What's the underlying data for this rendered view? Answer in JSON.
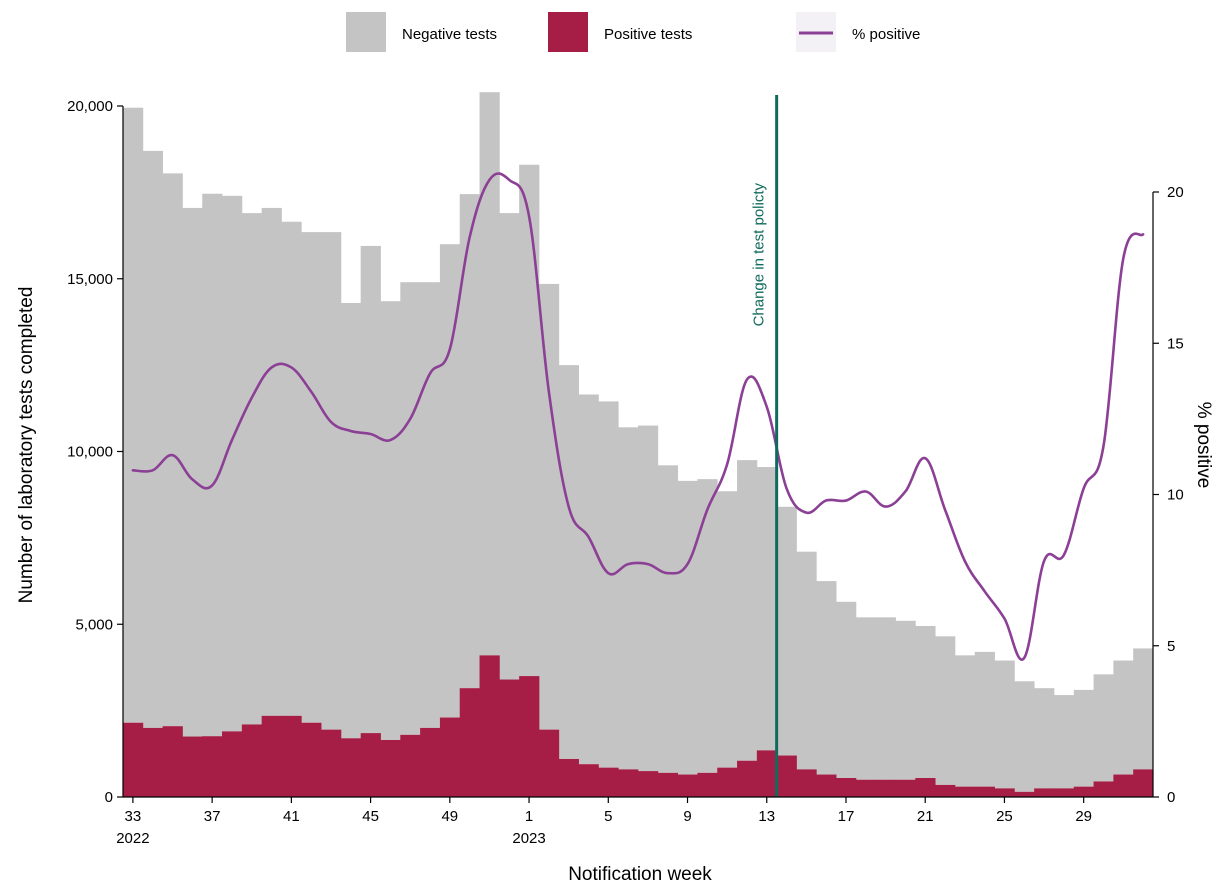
{
  "chart_data": {
    "type": "bar",
    "stacked": true,
    "x": [
      "33",
      "34",
      "35",
      "36",
      "37",
      "38",
      "39",
      "40",
      "41",
      "42",
      "43",
      "44",
      "45",
      "46",
      "47",
      "48",
      "49",
      "50",
      "51",
      "52",
      "1",
      "2",
      "3",
      "4",
      "5",
      "6",
      "7",
      "8",
      "9",
      "10",
      "11",
      "12",
      "13",
      "14",
      "15",
      "16",
      "17",
      "18",
      "19",
      "20",
      "21",
      "22",
      "23",
      "24",
      "25",
      "26",
      "27",
      "28",
      "29",
      "30",
      "31",
      "32"
    ],
    "x_tick_labels": [
      "33",
      "37",
      "41",
      "45",
      "49",
      "1",
      "5",
      "9",
      "13",
      "17",
      "21",
      "25",
      "29"
    ],
    "x_tick_values": [
      "33",
      "37",
      "41",
      "45",
      "49",
      "1",
      "5",
      "9",
      "13",
      "17",
      "21",
      "25",
      "29"
    ],
    "year_labels": [
      {
        "at": "33",
        "label": "2022"
      },
      {
        "at": "1",
        "label": "2023"
      }
    ],
    "xlabel": "Notification week",
    "ylabel": "Number of laboratory tests completed",
    "ylim": [
      0,
      20000
    ],
    "y_ticks": [
      0,
      5000,
      10000,
      15000,
      20000
    ],
    "y_tick_labels": [
      "0",
      "5,000",
      "10,000",
      "15,000",
      "20,000"
    ],
    "y2label": "% positive",
    "y2lim": [
      0,
      20
    ],
    "y2_ticks": [
      0,
      5,
      10,
      15,
      20
    ],
    "y2_tick_labels": [
      "0",
      "5",
      "10",
      "15",
      "20"
    ],
    "legend_position": "top",
    "series": [
      {
        "name": "Negative tests",
        "kind": "bar",
        "color": "#c4c4c4",
        "values": [
          17800,
          16700,
          16000,
          15300,
          15700,
          15500,
          14800,
          14700,
          14300,
          14200,
          14400,
          12600,
          14100,
          12700,
          13100,
          12900,
          13700,
          14300,
          16300,
          13500,
          14800,
          12900,
          11400,
          10700,
          10600,
          9900,
          10000,
          8900,
          8500,
          8500,
          8000,
          8700,
          8200,
          7200,
          6300,
          5600,
          5100,
          4700,
          4700,
          4600,
          4400,
          4300,
          3800,
          3900,
          3700,
          3200,
          2900,
          2700,
          2800,
          3100,
          3300,
          3500
        ]
      },
      {
        "name": "Positive tests",
        "kind": "bar",
        "color": "#a61e45",
        "values": [
          2150,
          2000,
          2050,
          1750,
          1760,
          1900,
          2100,
          2350,
          2350,
          2150,
          1950,
          1700,
          1850,
          1650,
          1800,
          2000,
          2300,
          3150,
          4100,
          3400,
          3500,
          1950,
          1100,
          950,
          850,
          800,
          750,
          700,
          650,
          700,
          850,
          1050,
          1350,
          1200,
          800,
          650,
          550,
          500,
          500,
          500,
          550,
          350,
          300,
          300,
          250,
          150,
          250,
          250,
          300,
          450,
          650,
          800
        ]
      },
      {
        "name": "% positive",
        "kind": "line",
        "axis": "right",
        "color": "#8b3f95",
        "values": [
          10.8,
          10.8,
          11.3,
          10.5,
          10.3,
          11.8,
          13.2,
          14.2,
          14.2,
          13.4,
          12.4,
          12.1,
          12.0,
          11.8,
          12.5,
          14.0,
          14.8,
          18.5,
          20.4,
          20.4,
          19.2,
          13.4,
          9.6,
          8.6,
          7.4,
          7.7,
          7.7,
          7.4,
          7.7,
          9.5,
          11.0,
          13.8,
          12.9,
          10.2,
          9.4,
          9.8,
          9.8,
          10.1,
          9.6,
          10.1,
          11.2,
          9.5,
          7.8,
          6.8,
          5.9,
          4.6,
          7.8,
          8.0,
          10.2,
          11.6,
          17.8,
          18.6
        ]
      }
    ],
    "annotations": [
      {
        "type": "vline",
        "x_between": [
          "13",
          "14"
        ],
        "label": "Change in test policty",
        "color": "#0f6b5c"
      }
    ]
  }
}
